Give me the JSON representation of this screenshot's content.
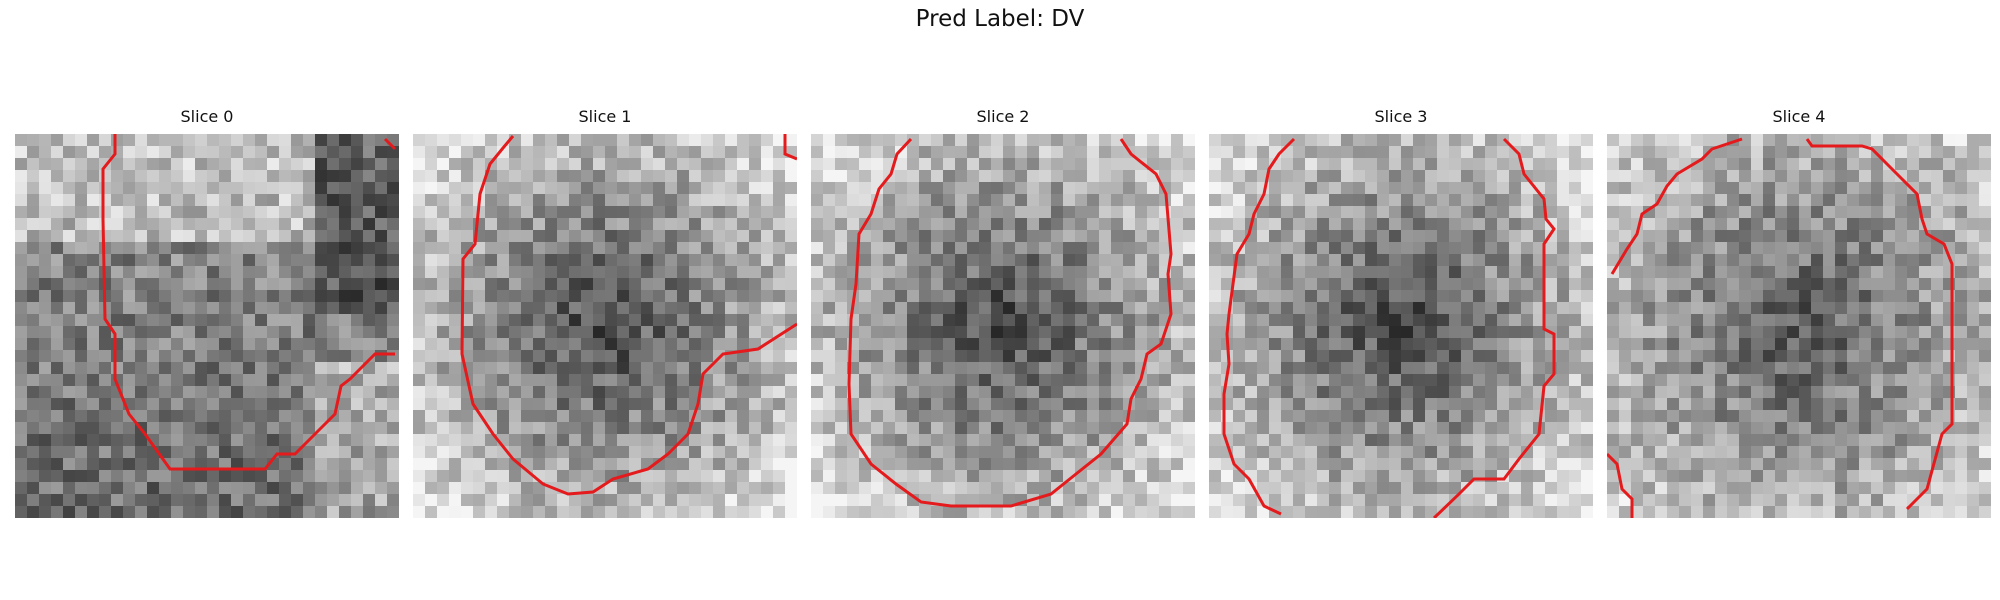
{
  "title": "Pred Label: DV",
  "slices": [
    {
      "label": "Slice 0",
      "seed": 11,
      "base": "bright-upper-left"
    },
    {
      "label": "Slice 1",
      "seed": 23,
      "base": "dark-center"
    },
    {
      "label": "Slice 2",
      "seed": 37,
      "base": "dark-center"
    },
    {
      "label": "Slice 3",
      "seed": 53,
      "base": "dark-center"
    },
    {
      "label": "Slice 4",
      "seed": 71,
      "base": "medium-center"
    }
  ],
  "colors": {
    "contour": "#e41a1c",
    "background": "#ffffff"
  }
}
